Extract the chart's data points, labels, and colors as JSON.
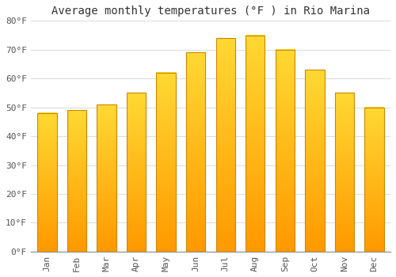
{
  "title": "Average monthly temperatures (°F ) in Rio Marina",
  "months": [
    "Jan",
    "Feb",
    "Mar",
    "Apr",
    "May",
    "Jun",
    "Jul",
    "Aug",
    "Sep",
    "Oct",
    "Nov",
    "Dec"
  ],
  "values": [
    48,
    49,
    51,
    55,
    62,
    69,
    74,
    75,
    70,
    63,
    55,
    50
  ],
  "bar_color_top": "#FFCC33",
  "bar_color_bottom": "#FF9900",
  "bar_edge_color": "#CC8800",
  "ylim": [
    0,
    80
  ],
  "yticks": [
    0,
    10,
    20,
    30,
    40,
    50,
    60,
    70,
    80
  ],
  "background_color": "#FFFFFF",
  "plot_bg_color": "#FFFFFF",
  "grid_color": "#DDDDDD",
  "title_fontsize": 10,
  "tick_fontsize": 8,
  "tick_color": "#555555",
  "title_color": "#333333"
}
